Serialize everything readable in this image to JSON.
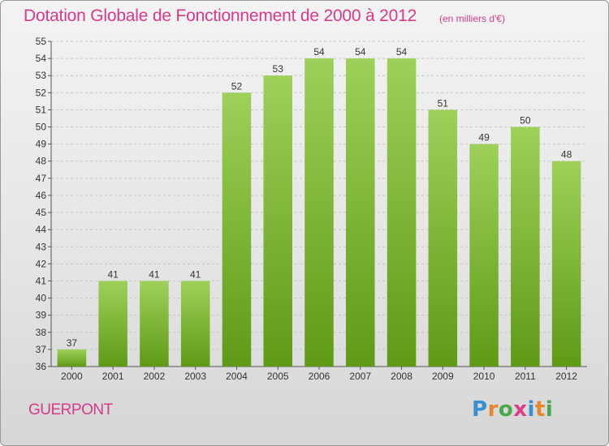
{
  "title": "Dotation Globale de Fonctionnement de 2000 à 2012",
  "unit_note": "(en milliers d'€)",
  "commune": "GUERPONT",
  "logo": {
    "text": "Proxiti",
    "letter_colors": [
      "#3a8fd0",
      "#e8842a",
      "#4aa84a",
      "#e03a8a",
      "#3a8fd0",
      "#e8842a",
      "#4aa84a"
    ]
  },
  "colors": {
    "bar_top": "#9ed05a",
    "bar_bottom": "#5f9a16",
    "accent": "#d63a8a",
    "axis_text": "#333333"
  },
  "chart_data": {
    "type": "bar",
    "categories": [
      "2000",
      "2001",
      "2002",
      "2003",
      "2004",
      "2005",
      "2006",
      "2007",
      "2008",
      "2009",
      "2010",
      "2011",
      "2012"
    ],
    "values": [
      37,
      41,
      41,
      41,
      52,
      53,
      54,
      54,
      54,
      51,
      49,
      50,
      48
    ],
    "ylim": [
      36,
      55
    ],
    "yticks": [
      36,
      37,
      38,
      39,
      40,
      41,
      42,
      43,
      44,
      45,
      46,
      47,
      48,
      49,
      50,
      51,
      52,
      53,
      54,
      55
    ],
    "grid": true,
    "title": "Dotation Globale de Fonctionnement de 2000 à 2012",
    "xlabel": "",
    "ylabel": ""
  }
}
